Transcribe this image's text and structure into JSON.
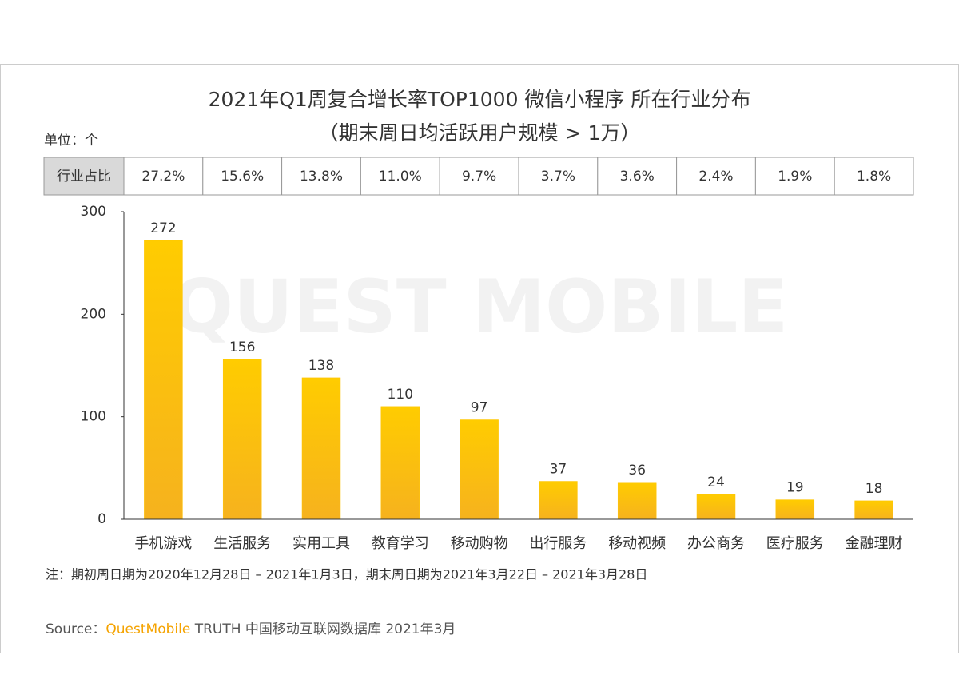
{
  "chart_data": {
    "type": "bar",
    "title": "2021年Q1周复合增长率TOP1000 微信小程序 所在行业分布",
    "subtitle": "（期末周日均活跃用户规模 > 1万）",
    "unit_label": "单位：个",
    "share_row": {
      "label": "行业占比",
      "values": [
        "27.2%",
        "15.6%",
        "13.8%",
        "11.0%",
        "9.7%",
        "3.7%",
        "3.6%",
        "2.4%",
        "1.9%",
        "1.8%"
      ]
    },
    "categories": [
      "手机游戏",
      "生活服务",
      "实用工具",
      "教育学习",
      "移动购物",
      "出行服务",
      "移动视频",
      "办公商务",
      "医疗服务",
      "金融理财"
    ],
    "values": [
      272,
      156,
      138,
      110,
      97,
      37,
      36,
      24,
      19,
      18
    ],
    "color": "#ffc400",
    "ylim": [
      0,
      300
    ],
    "yticks": [
      0,
      100,
      200,
      300
    ],
    "note": "注：期初周日期为2020年12月28日 – 2021年1月3日，期末周日期为2021年3月22日 – 2021年3月28日",
    "source_prefix": "Source：",
    "source_brand": "QuestMobile",
    "source_rest": " TRUTH 中国移动互联网数据库 2021年3月",
    "watermark": "QUEST MOBILE"
  }
}
